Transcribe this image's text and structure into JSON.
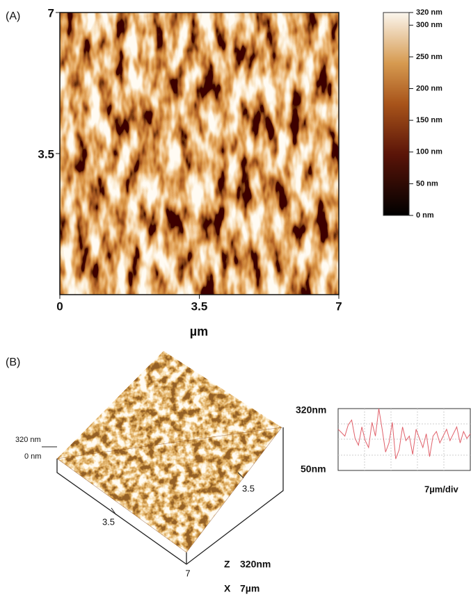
{
  "panel_a": {
    "label": "(A)",
    "x_label": "µm",
    "xlim": [
      0,
      7
    ],
    "xticks": [
      0,
      3.5,
      7
    ],
    "ylim": [
      0,
      7
    ],
    "yticks": [
      3.5,
      7
    ],
    "colorbar": {
      "lim": [
        0,
        320
      ],
      "ticks": [
        {
          "value": 320,
          "label": "320 nm"
        },
        {
          "value": 300,
          "label": "300 nm"
        },
        {
          "value": 250,
          "label": "250 nm"
        },
        {
          "value": 200,
          "label": "200 nm"
        },
        {
          "value": 150,
          "label": "150 nm"
        },
        {
          "value": 100,
          "label": "100 nm"
        },
        {
          "value": 50,
          "label": "50 nm"
        },
        {
          "value": 0,
          "label": "0 nm"
        }
      ]
    }
  },
  "panel_b": {
    "label": "(B)",
    "z_top_label": "320 nm",
    "z_bottom_label": "0 nm",
    "x_ticks": [
      3.5,
      7
    ],
    "y_ticks": [
      3.5
    ],
    "z_scale_axis": "Z",
    "z_scale": "320nm",
    "x_scale_axis": "X",
    "x_scale": "7µm",
    "profile": {
      "ymax_label": "320nm",
      "ymin_label": "50nm",
      "x_label": "7µm/div",
      "ylim": [
        50,
        320
      ],
      "color": "#e0606a",
      "values": [
        230,
        215,
        200,
        250,
        270,
        190,
        160,
        240,
        180,
        150,
        260,
        200,
        320,
        230,
        130,
        170,
        260,
        100,
        140,
        240,
        180,
        200,
        120,
        230,
        190,
        150,
        210,
        110,
        200,
        220,
        170,
        200,
        230,
        180,
        210,
        240,
        170,
        220,
        190,
        210
      ]
    }
  }
}
